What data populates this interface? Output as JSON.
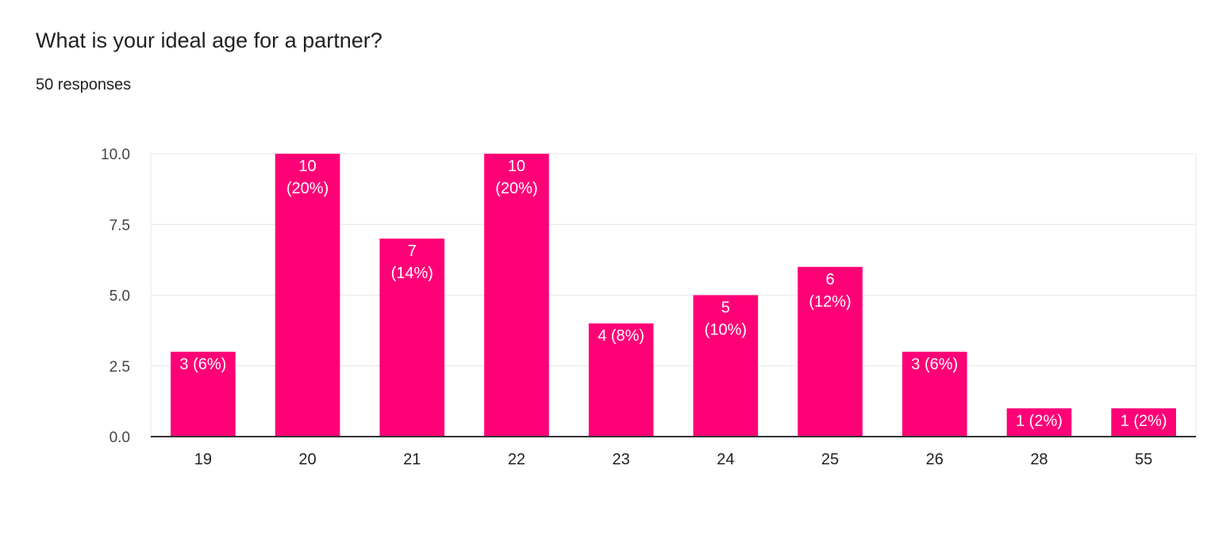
{
  "title": "What is your ideal age for a partner?",
  "subtitle": "50 responses",
  "colors": {
    "bar": "#ff0077",
    "grid": "#e6e6e6",
    "axis": "#333333"
  },
  "chart_data": {
    "type": "bar",
    "categories": [
      "19",
      "20",
      "21",
      "22",
      "23",
      "24",
      "25",
      "26",
      "28",
      "55"
    ],
    "values": [
      3,
      10,
      7,
      10,
      4,
      5,
      6,
      3,
      1,
      1
    ],
    "data_labels": [
      [
        "3 (6%)"
      ],
      [
        "10",
        "(20%)"
      ],
      [
        "7",
        "(14%)"
      ],
      [
        "10",
        "(20%)"
      ],
      [
        "4 (8%)"
      ],
      [
        "5",
        "(10%)"
      ],
      [
        "6",
        "(12%)"
      ],
      [
        "3 (6%)"
      ],
      [
        "1 (2%)"
      ],
      [
        "1 (2%)"
      ]
    ],
    "yticks": [
      "0.0",
      "2.5",
      "5.0",
      "7.5",
      "10.0"
    ],
    "ylim": [
      0,
      10
    ],
    "grid": true
  }
}
